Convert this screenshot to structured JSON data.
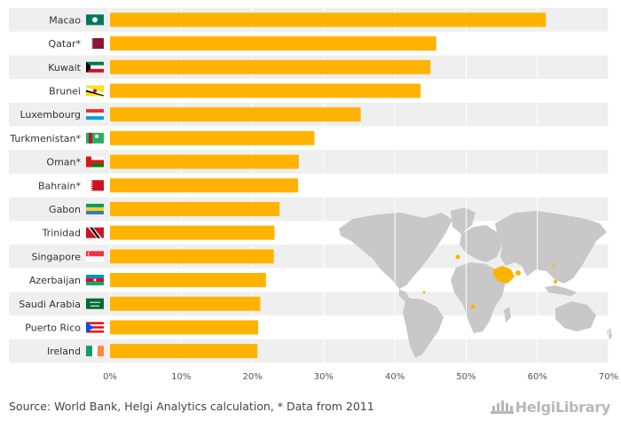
{
  "chart_data": {
    "type": "bar",
    "orientation": "horizontal",
    "categories": [
      "Macao",
      "Qatar*",
      "Kuwait",
      "Brunei",
      "Luxembourg",
      "Turkmenistan*",
      "Oman*",
      "Bahrain*",
      "Gabon",
      "Trinidad",
      "Singapore",
      "Azerbaijan",
      "Saudi Arabia",
      "Puerto Rico",
      "Ireland"
    ],
    "values": [
      61.2,
      45.8,
      45.0,
      43.6,
      35.2,
      28.7,
      26.5,
      26.4,
      23.8,
      23.1,
      23.0,
      21.9,
      21.1,
      20.8,
      20.7
    ],
    "xlim": [
      0,
      70
    ],
    "ticks": [
      0,
      10,
      20,
      30,
      40,
      50,
      60,
      70
    ],
    "tick_labels": [
      "0%",
      "10%",
      "20%",
      "30%",
      "40%",
      "50%",
      "60%",
      "70%"
    ],
    "bar_color": "#ffb300",
    "flags": [
      "flag-macao-icon",
      "flag-qatar-icon",
      "flag-kuwait-icon",
      "flag-brunei-icon",
      "flag-luxembourg-icon",
      "flag-turkmenistan-icon",
      "flag-oman-icon",
      "flag-bahrain-icon",
      "flag-gabon-icon",
      "flag-trinidad-icon",
      "flag-singapore-icon",
      "flag-azerbaijan-icon",
      "flag-saudi-arabia-icon",
      "flag-puerto-rico-icon",
      "flag-ireland-icon"
    ]
  },
  "footer": {
    "source": "Source: World Bank, Helgi Analytics calculation, * Data from 2011",
    "brand": "HelgiLibrary"
  }
}
